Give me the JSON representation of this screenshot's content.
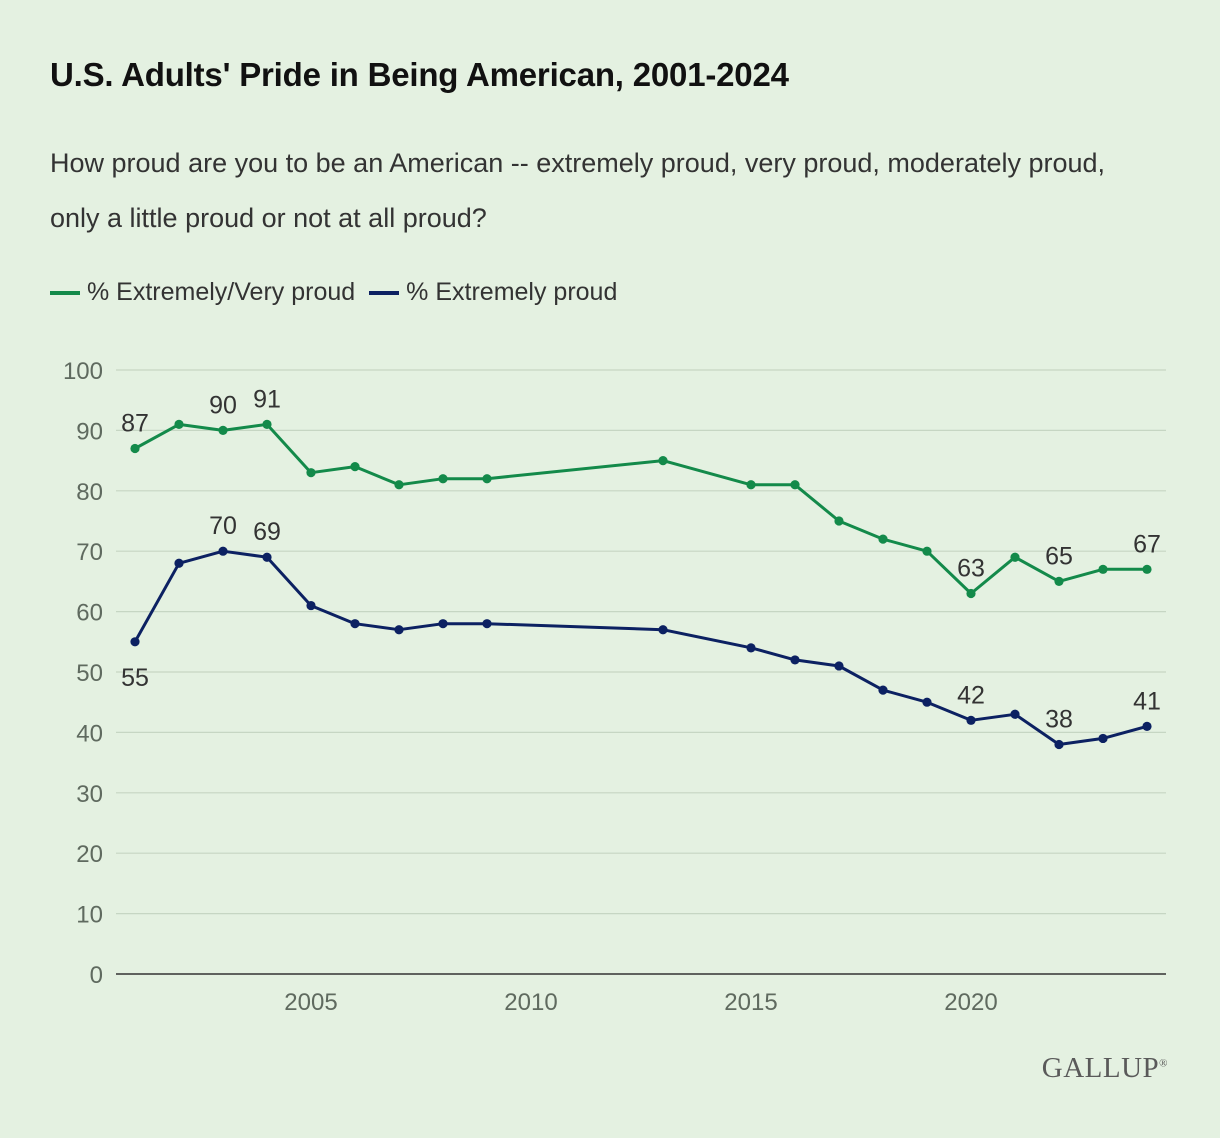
{
  "header": {
    "title": "U.S. Adults' Pride in Being American, 2001-2024",
    "subtitle": "How proud are you to be an American -- extremely proud, very proud, moderately proud, only a little proud or not at all proud?"
  },
  "legend": {
    "items": [
      {
        "label": "% Extremely/Very proud",
        "color": "#138a4a"
      },
      {
        "label": "% Extremely proud",
        "color": "#0c2162"
      }
    ]
  },
  "brand": {
    "logo_text": "GALLUP",
    "registered_mark": "®"
  },
  "colors": {
    "background": "#e4f1e1",
    "gridline": "#c6d6c3",
    "axis_text": "#5f6a5f"
  },
  "chart_data": {
    "type": "line",
    "title": "U.S. Adults' Pride in Being American, 2001-2024",
    "xlabel": "",
    "ylabel": "",
    "ylim": [
      0,
      100
    ],
    "xlim": [
      2001,
      2024
    ],
    "y_ticks": [
      0,
      10,
      20,
      30,
      40,
      50,
      60,
      70,
      80,
      90,
      100
    ],
    "x_ticks": [
      2005,
      2010,
      2015,
      2020
    ],
    "grid": true,
    "legend_position": "top-left",
    "series": [
      {
        "name": "% Extremely/Very proud",
        "color": "#138a4a",
        "points": [
          {
            "x": 2001,
            "y": 87
          },
          {
            "x": 2002,
            "y": 91
          },
          {
            "x": 2003,
            "y": 90
          },
          {
            "x": 2004,
            "y": 91
          },
          {
            "x": 2005,
            "y": 83
          },
          {
            "x": 2006,
            "y": 84
          },
          {
            "x": 2007,
            "y": 81
          },
          {
            "x": 2008,
            "y": 82
          },
          {
            "x": 2009,
            "y": 82
          },
          {
            "x": 2013,
            "y": 85
          },
          {
            "x": 2015,
            "y": 81
          },
          {
            "x": 2016,
            "y": 81
          },
          {
            "x": 2017,
            "y": 75
          },
          {
            "x": 2018,
            "y": 72
          },
          {
            "x": 2019,
            "y": 70
          },
          {
            "x": 2020,
            "y": 63
          },
          {
            "x": 2021,
            "y": 69
          },
          {
            "x": 2022,
            "y": 65
          },
          {
            "x": 2023,
            "y": 67
          },
          {
            "x": 2024,
            "y": 67
          }
        ],
        "labeled_years": [
          2001,
          2003,
          2004,
          2020,
          2022,
          2024
        ],
        "label_position": "above"
      },
      {
        "name": "% Extremely proud",
        "color": "#0c2162",
        "points": [
          {
            "x": 2001,
            "y": 55
          },
          {
            "x": 2002,
            "y": 68
          },
          {
            "x": 2003,
            "y": 70
          },
          {
            "x": 2004,
            "y": 69
          },
          {
            "x": 2005,
            "y": 61
          },
          {
            "x": 2006,
            "y": 58
          },
          {
            "x": 2007,
            "y": 57
          },
          {
            "x": 2008,
            "y": 58
          },
          {
            "x": 2009,
            "y": 58
          },
          {
            "x": 2013,
            "y": 57
          },
          {
            "x": 2015,
            "y": 54
          },
          {
            "x": 2016,
            "y": 52
          },
          {
            "x": 2017,
            "y": 51
          },
          {
            "x": 2018,
            "y": 47
          },
          {
            "x": 2019,
            "y": 45
          },
          {
            "x": 2020,
            "y": 42
          },
          {
            "x": 2021,
            "y": 43
          },
          {
            "x": 2022,
            "y": 38
          },
          {
            "x": 2023,
            "y": 39
          },
          {
            "x": 2024,
            "y": 41
          }
        ],
        "labeled_years": [
          2001,
          2003,
          2004,
          2020,
          2022,
          2024
        ],
        "label_below_years": [
          2001
        ],
        "label_position": "above"
      }
    ]
  }
}
